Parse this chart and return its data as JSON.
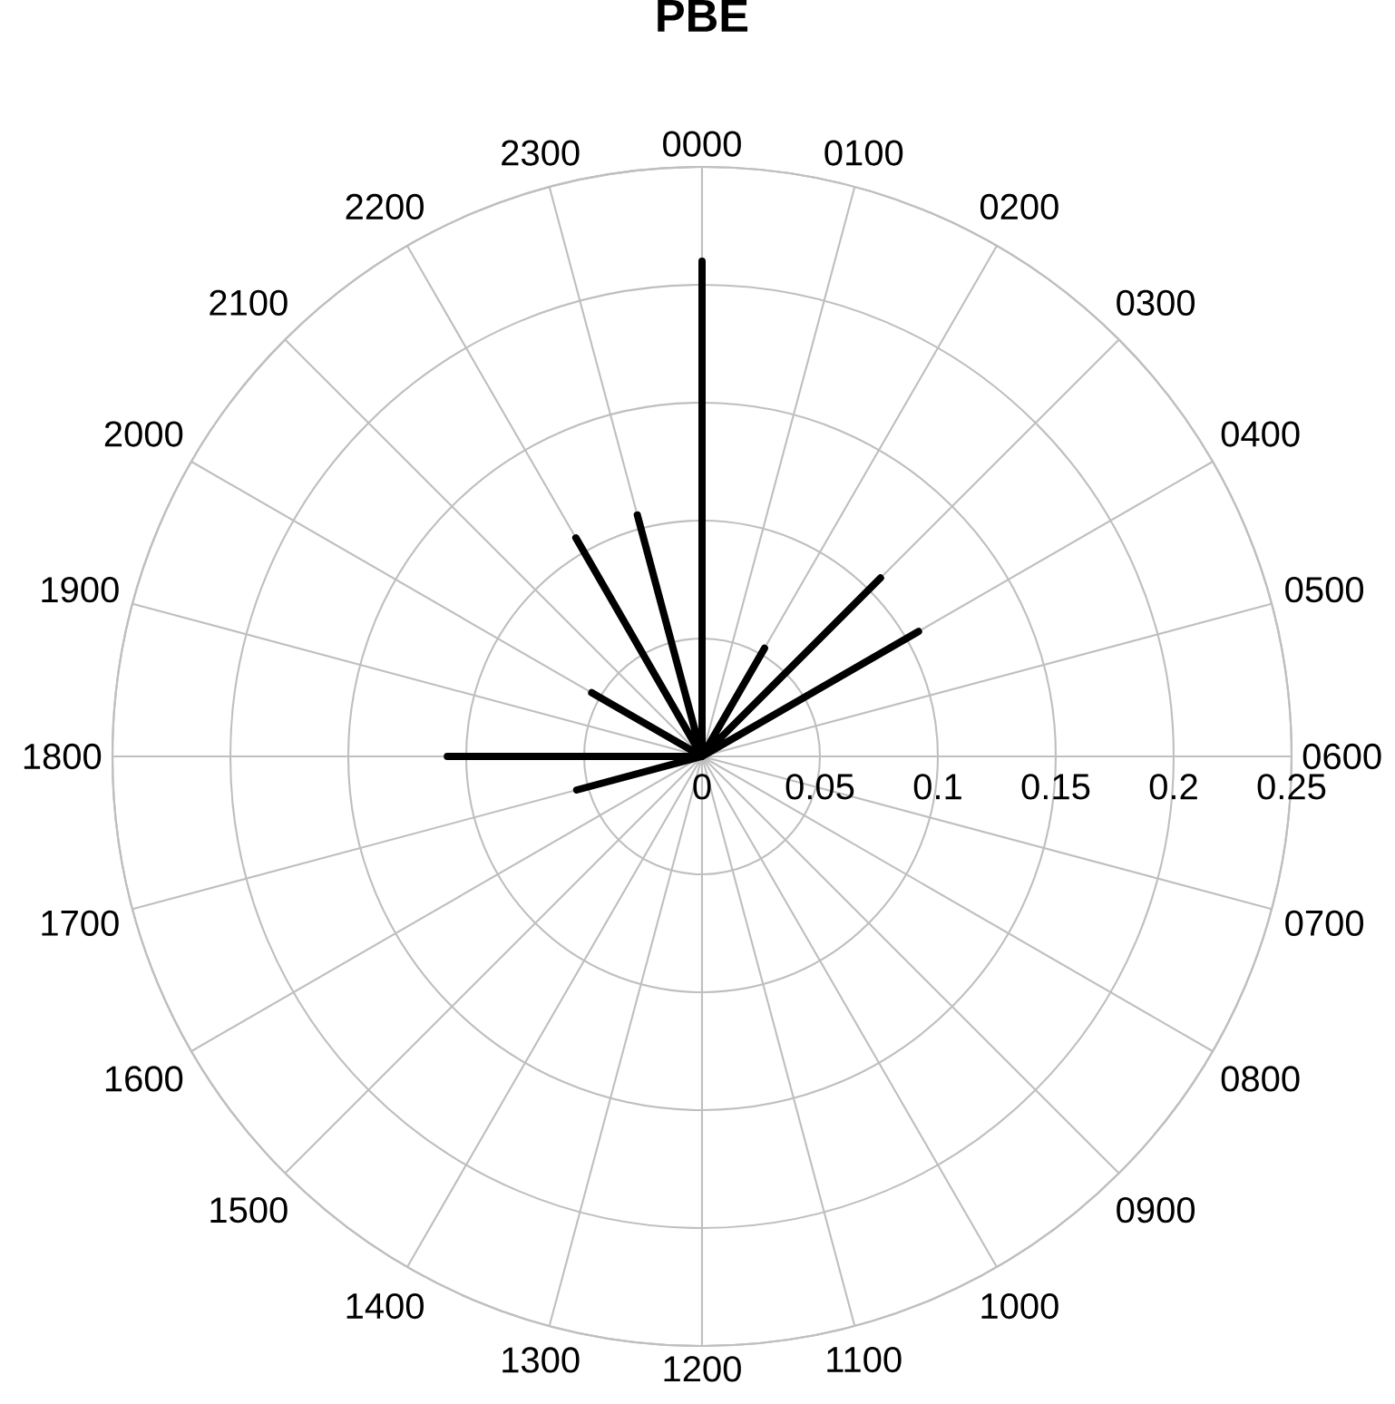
{
  "chart_data": {
    "type": "radar",
    "title": "PBE",
    "categories": [
      "0000",
      "0100",
      "0200",
      "0300",
      "0400",
      "0500",
      "0600",
      "0700",
      "0800",
      "0900",
      "1000",
      "1100",
      "1200",
      "1300",
      "1400",
      "1500",
      "1600",
      "1700",
      "1800",
      "1900",
      "2000",
      "2100",
      "2200",
      "2300"
    ],
    "series": [
      {
        "color": "#000000",
        "values": [
          0.21,
          0,
          0.053,
          0.107,
          0.106,
          0,
          0,
          0,
          0,
          0,
          0,
          0,
          0,
          0,
          0,
          0,
          0,
          0.055,
          0.108,
          0,
          0.054,
          0,
          0.107,
          0.106
        ]
      }
    ],
    "ylim": [
      0,
      0.25
    ],
    "yticks": [
      0,
      0.05,
      0.1,
      0.15,
      0.2,
      0.25
    ],
    "grid": true
  }
}
